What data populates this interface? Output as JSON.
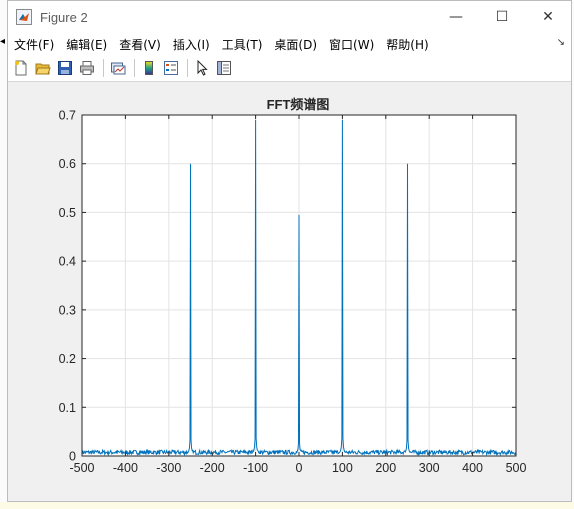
{
  "window": {
    "title": "Figure 2",
    "controls": {
      "minimize": "—",
      "maximize": "☐",
      "close": "✕"
    }
  },
  "menubar": {
    "items": [
      "文件(F)",
      "编辑(E)",
      "查看(V)",
      "插入(I)",
      "工具(T)",
      "桌面(D)",
      "窗口(W)",
      "帮助(H)"
    ]
  },
  "toolbar": {
    "buttons": [
      "new-figure-icon",
      "open-file-icon",
      "save-icon",
      "print-icon",
      "link-plot-icon",
      "colorbar-icon",
      "legend-icon",
      "pointer-icon",
      "property-editor-icon"
    ]
  },
  "chart_data": {
    "type": "line",
    "title": "FFT频谱图",
    "xlabel": "",
    "ylabel": "",
    "xlim": [
      -500,
      500
    ],
    "ylim": [
      0,
      0.7
    ],
    "x_ticks": [
      -500,
      -400,
      -300,
      -200,
      -100,
      0,
      100,
      200,
      300,
      400,
      500
    ],
    "y_ticks": [
      0,
      0.1,
      0.2,
      0.3,
      0.4,
      0.5,
      0.6,
      0.7
    ],
    "grid": true,
    "line_color": "#0072bd",
    "noise_floor": 0.01,
    "peaks": [
      {
        "x": -250,
        "y": 0.6
      },
      {
        "x": -100,
        "y": 0.69
      },
      {
        "x": 0,
        "y": 0.495
      },
      {
        "x": 100,
        "y": 0.69
      },
      {
        "x": 250,
        "y": 0.6
      }
    ]
  }
}
